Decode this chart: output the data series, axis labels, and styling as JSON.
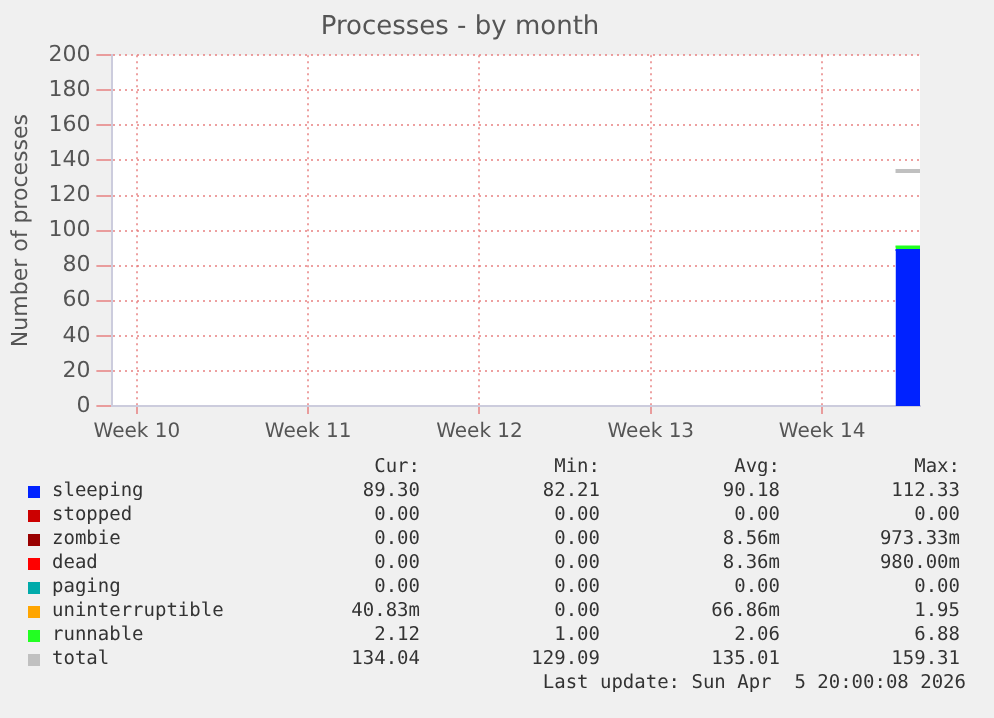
{
  "chart_data": {
    "type": "area",
    "title": "Processes - by month",
    "ylabel": "Number of processes",
    "categories": [
      null,
      "Week 10",
      null,
      null,
      null,
      null,
      null,
      null,
      "Week 11",
      null,
      null,
      null,
      null,
      null,
      null,
      "Week 12",
      null,
      null,
      null,
      null,
      null,
      null,
      "Week 13",
      null,
      null,
      null,
      null,
      null,
      null,
      "Week 14",
      null,
      null,
      null,
      null
    ],
    "ylim": [
      0,
      200
    ],
    "yticks": [
      0,
      20,
      40,
      60,
      80,
      100,
      120,
      140,
      160,
      180,
      200
    ],
    "stacked": true,
    "grid": true,
    "legend": "bottom",
    "series": [
      {
        "name": "sleeping",
        "color": "#0022ff",
        "values": [
          null,
          null,
          null,
          null,
          null,
          null,
          null,
          null,
          null,
          null,
          null,
          null,
          null,
          null,
          null,
          null,
          null,
          null,
          null,
          null,
          null,
          null,
          null,
          null,
          null,
          null,
          null,
          null,
          null,
          null,
          null,
          null,
          89,
          89
        ]
      },
      {
        "name": "stopped",
        "color": "#cc0000",
        "values": [
          null,
          null,
          null,
          null,
          null,
          null,
          null,
          null,
          null,
          null,
          null,
          null,
          null,
          null,
          null,
          null,
          null,
          null,
          null,
          null,
          null,
          null,
          null,
          null,
          null,
          null,
          null,
          null,
          null,
          null,
          null,
          null,
          null,
          null
        ]
      },
      {
        "name": "zombie",
        "color": "#990000",
        "values": [
          null,
          null,
          null,
          null,
          null,
          null,
          null,
          null,
          null,
          null,
          null,
          null,
          null,
          null,
          null,
          null,
          null,
          null,
          null,
          null,
          null,
          null,
          null,
          null,
          null,
          null,
          null,
          null,
          null,
          null,
          null,
          null,
          null,
          null
        ]
      },
      {
        "name": "dead",
        "color": "#ff0000",
        "values": [
          null,
          null,
          null,
          null,
          null,
          null,
          null,
          null,
          null,
          null,
          null,
          null,
          null,
          null,
          null,
          null,
          null,
          null,
          null,
          null,
          null,
          null,
          null,
          null,
          null,
          null,
          null,
          null,
          null,
          null,
          null,
          null,
          null,
          null
        ]
      },
      {
        "name": "paging",
        "color": "#00aaaa",
        "values": [
          null,
          null,
          null,
          null,
          null,
          null,
          null,
          null,
          null,
          null,
          null,
          null,
          null,
          null,
          null,
          null,
          null,
          null,
          null,
          null,
          null,
          null,
          null,
          null,
          null,
          null,
          null,
          null,
          null,
          null,
          null,
          null,
          null,
          null
        ]
      },
      {
        "name": "uninterruptible",
        "color": "#ffa500",
        "values": [
          null,
          null,
          null,
          null,
          null,
          null,
          null,
          null,
          null,
          null,
          null,
          null,
          null,
          null,
          null,
          null,
          null,
          null,
          null,
          null,
          null,
          null,
          null,
          null,
          null,
          null,
          null,
          null,
          null,
          null,
          null,
          null,
          null,
          null
        ]
      },
      {
        "name": "runnable",
        "color": "#22ff22",
        "values": [
          null,
          null,
          null,
          null,
          null,
          null,
          null,
          null,
          null,
          null,
          null,
          null,
          null,
          null,
          null,
          null,
          null,
          null,
          null,
          null,
          null,
          null,
          null,
          null,
          null,
          null,
          null,
          null,
          null,
          null,
          null,
          null,
          2,
          2
        ]
      },
      {
        "name": "total",
        "type": "line",
        "color": "#c0c0c0",
        "values": [
          null,
          null,
          null,
          null,
          null,
          null,
          null,
          null,
          null,
          null,
          null,
          null,
          null,
          null,
          null,
          null,
          null,
          null,
          null,
          null,
          null,
          null,
          null,
          null,
          null,
          null,
          null,
          null,
          null,
          null,
          null,
          null,
          134,
          134
        ]
      }
    ],
    "annotations": [
      "Cur:",
      "Min:",
      "Avg:",
      "Max:",
      "89.30",
      "82.21",
      "90.18",
      "112.33",
      "0.00",
      "0.00",
      "0.00",
      "0.00",
      "0.00",
      "0.00",
      "8.56m",
      "973.33m",
      "0.00",
      "0.00",
      "8.36m",
      "980.00m",
      "0.00",
      "0.00",
      "0.00",
      "0.00",
      "40.83m",
      "0.00",
      "66.86m",
      "1.95",
      "2.12",
      "1.00",
      "2.06",
      "6.88",
      "134.04",
      "129.09",
      "135.01",
      "159.31",
      "Last update: Sun Apr  5 20:00:08 2026"
    ]
  }
}
